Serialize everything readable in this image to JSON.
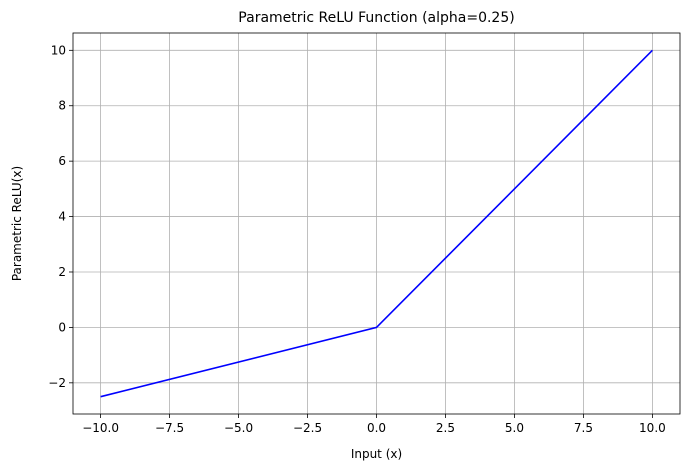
{
  "chart_data": {
    "type": "line",
    "title": "Parametric ReLU Function (alpha=0.25)",
    "xlabel": "Input (x)",
    "ylabel": "Parametric ReLU(x)",
    "xlim": [
      -11,
      11
    ],
    "ylim": [
      -3.125,
      10.625
    ],
    "x_ticks": [
      -10,
      -7.5,
      -5,
      -2.5,
      0,
      2.5,
      5,
      7.5,
      10
    ],
    "x_tick_labels": [
      "−10.0",
      "−7.5",
      "−5.0",
      "−2.5",
      "0.0",
      "2.5",
      "5.0",
      "7.5",
      "10.0"
    ],
    "y_ticks": [
      -2,
      0,
      2,
      4,
      6,
      8,
      10
    ],
    "y_tick_labels": [
      "−2",
      "0",
      "2",
      "4",
      "6",
      "8",
      "10"
    ],
    "grid": true,
    "series": [
      {
        "color": "#0000ff",
        "x": [
          -10,
          0,
          10
        ],
        "y": [
          -2.5,
          0,
          10
        ]
      }
    ]
  }
}
